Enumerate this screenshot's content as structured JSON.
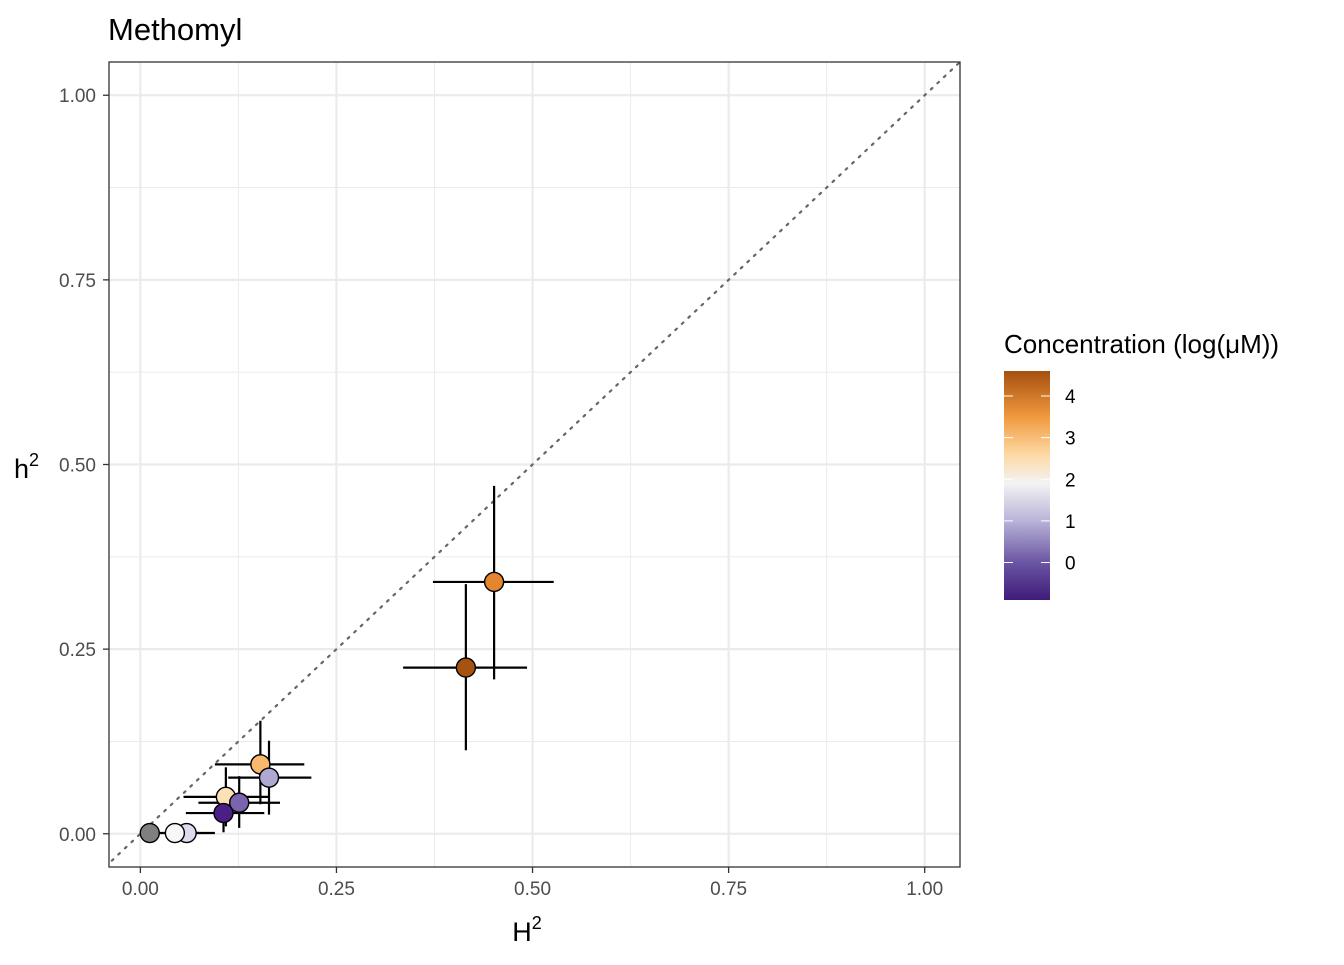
{
  "chart_data": {
    "type": "scatter",
    "title": "Methomyl",
    "xlabel_base": "H",
    "xlabel_sup": "2",
    "ylabel_base": "h",
    "ylabel_sup": "2",
    "xlim": [
      -0.04,
      1.045
    ],
    "ylim": [
      -0.045,
      1.045
    ],
    "x_ticks": [
      0.0,
      0.25,
      0.5,
      0.75,
      1.0
    ],
    "x_tick_labels": [
      "0.00",
      "0.25",
      "0.50",
      "0.75",
      "1.00"
    ],
    "y_ticks": [
      0.0,
      0.25,
      0.5,
      0.75,
      1.0
    ],
    "y_tick_labels": [
      "0.00",
      "0.25",
      "0.50",
      "0.75",
      "1.00"
    ],
    "grid": true,
    "reference_line": "y = x (dotted)",
    "points": [
      {
        "x": 0.415,
        "y": 0.225,
        "x_err": [
          0.335,
          0.493
        ],
        "y_err": [
          0.113,
          0.338
        ],
        "color": "#A8520F"
      },
      {
        "x": 0.451,
        "y": 0.341,
        "x_err": [
          0.373,
          0.527
        ],
        "y_err": [
          0.209,
          0.471
        ],
        "color": "#E5852E"
      },
      {
        "x": 0.153,
        "y": 0.094,
        "x_err": [
          0.095,
          0.209
        ],
        "y_err": [
          0.04,
          0.153
        ],
        "color": "#F8B86E"
      },
      {
        "x": 0.164,
        "y": 0.076,
        "x_err": [
          0.112,
          0.218
        ],
        "y_err": [
          0.026,
          0.126
        ],
        "color": "#AFA8D2"
      },
      {
        "x": 0.109,
        "y": 0.05,
        "x_err": [
          0.055,
          0.163
        ],
        "y_err": [
          0.01,
          0.09
        ],
        "color": "#FDE0B6"
      },
      {
        "x": 0.126,
        "y": 0.042,
        "x_err": [
          0.074,
          0.178
        ],
        "y_err": [
          0.008,
          0.078
        ],
        "color": "#7A64AD"
      },
      {
        "x": 0.106,
        "y": 0.028,
        "x_err": [
          0.058,
          0.158
        ],
        "y_err": [
          0.002,
          0.056
        ],
        "color": "#4A1F86"
      },
      {
        "x": 0.059,
        "y": 0.001,
        "x_err": [
          0.04,
          0.095
        ],
        "y_err": [
          0.0,
          0.003
        ],
        "color": "#DCDCEE"
      },
      {
        "x": 0.044,
        "y": 0.001,
        "x_err": [
          0.03,
          0.075
        ],
        "y_err": [
          0.0,
          0.003
        ],
        "color": "#F7F7F7"
      },
      {
        "x": 0.012,
        "y": 0.001,
        "x_err": [
          0.002,
          0.03
        ],
        "y_err": [
          0.0,
          0.003
        ],
        "color": "#7F7F7F"
      }
    ],
    "legend": {
      "title": "Concentration (log(μM))",
      "placement": "right",
      "min": -0.9,
      "max": 4.6,
      "ticks": [
        0,
        1,
        2,
        3,
        4
      ],
      "tick_labels": [
        "0",
        "1",
        "2",
        "3",
        "4"
      ],
      "color_stops": [
        {
          "value": -0.9,
          "color": "#3F1C7A"
        },
        {
          "value": 0.0,
          "color": "#6A55A3"
        },
        {
          "value": 1.0,
          "color": "#B9B3D8"
        },
        {
          "value": 1.9,
          "color": "#F4F3F4"
        },
        {
          "value": 2.6,
          "color": "#FDD9A4"
        },
        {
          "value": 3.5,
          "color": "#F0993E"
        },
        {
          "value": 4.6,
          "color": "#A6500F"
        }
      ]
    }
  }
}
